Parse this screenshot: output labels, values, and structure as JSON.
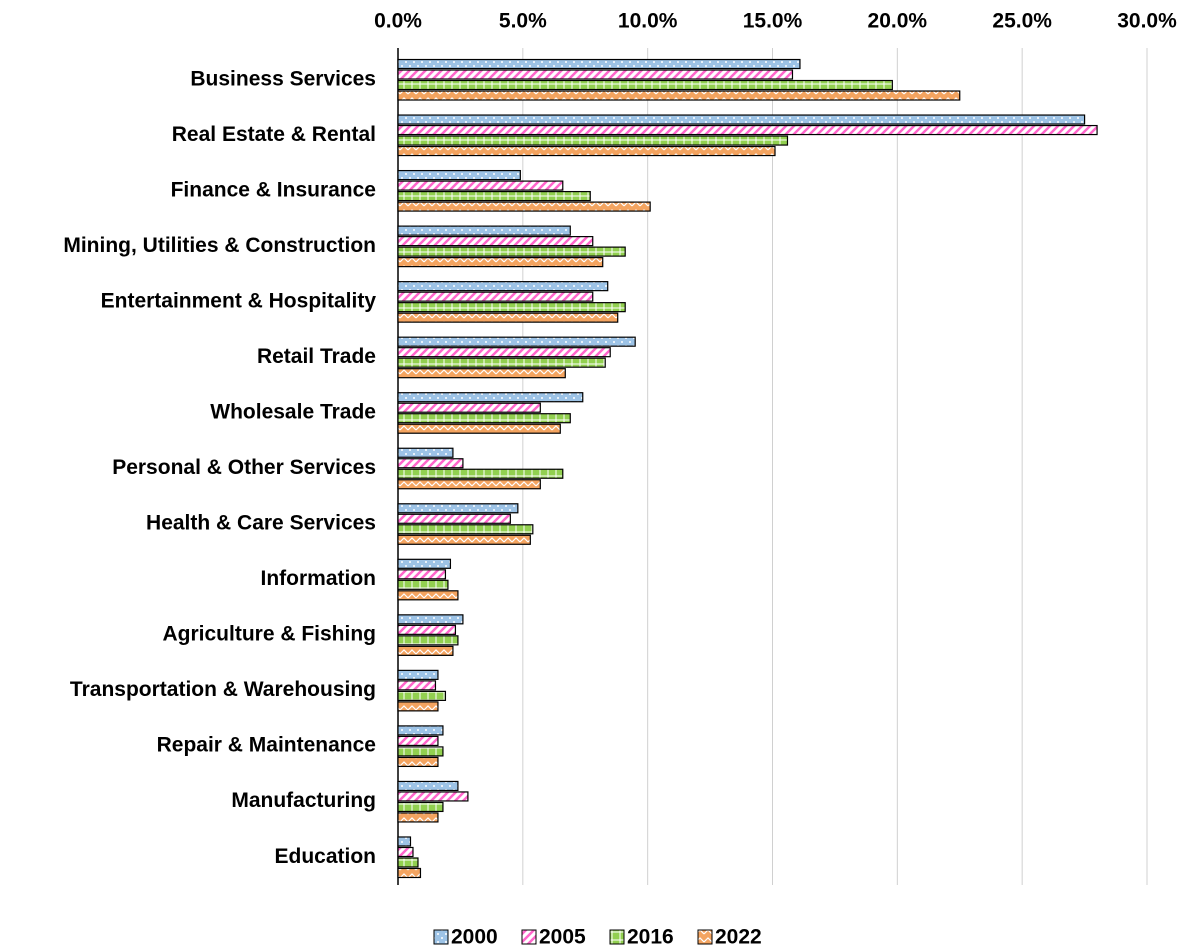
{
  "chart_data": {
    "type": "hbar",
    "categories": [
      "Business Services",
      "Real Estate & Rental",
      "Finance & Insurance",
      "Mining, Utilities & Construction",
      "Entertainment & Hospitality",
      "Retail Trade",
      "Wholesale Trade",
      "Personal & Other Services",
      "Health & Care Services",
      "Information",
      "Agriculture & Fishing",
      "Transportation & Warehousing",
      "Repair & Maintenance",
      "Manufacturing",
      "Education"
    ],
    "series": [
      {
        "name": "2000",
        "color": "#9dc3e6",
        "values": [
          16.1,
          27.5,
          4.9,
          6.9,
          8.4,
          9.5,
          7.4,
          2.2,
          4.8,
          2.1,
          2.6,
          1.6,
          1.8,
          2.4,
          0.5
        ]
      },
      {
        "name": "2005",
        "color": "#ff66cc",
        "values": [
          15.8,
          28.0,
          6.6,
          7.8,
          7.8,
          8.5,
          5.7,
          2.6,
          4.5,
          1.9,
          2.3,
          1.5,
          1.6,
          2.8,
          0.6
        ]
      },
      {
        "name": "2016",
        "color": "#92d050",
        "values": [
          19.8,
          15.6,
          7.7,
          9.1,
          9.1,
          8.3,
          6.9,
          6.6,
          5.4,
          2.0,
          2.4,
          1.9,
          1.8,
          1.8,
          0.8
        ]
      },
      {
        "name": "2022",
        "color": "#f4a460",
        "values": [
          22.5,
          15.1,
          10.1,
          8.2,
          8.8,
          6.7,
          6.5,
          5.7,
          5.3,
          2.4,
          2.2,
          1.6,
          1.6,
          1.6,
          0.9
        ]
      }
    ],
    "xlim": [
      0,
      30
    ],
    "xticks": [
      {
        "value": 0,
        "label": "0.0%"
      },
      {
        "value": 5,
        "label": "5.0%"
      },
      {
        "value": 10,
        "label": "10.0%"
      },
      {
        "value": 15,
        "label": "15.0%"
      },
      {
        "value": 20,
        "label": "20.0%"
      },
      {
        "value": 25,
        "label": "25.0%"
      },
      {
        "value": 30,
        "label": "30.0%"
      }
    ],
    "grid": true,
    "legend": "bottom"
  }
}
